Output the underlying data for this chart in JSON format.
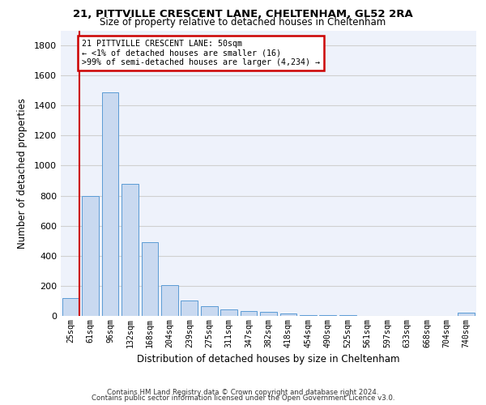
{
  "title1": "21, PITTVILLE CRESCENT LANE, CHELTENHAM, GL52 2RA",
  "title2": "Size of property relative to detached houses in Cheltenham",
  "xlabel": "Distribution of detached houses by size in Cheltenham",
  "ylabel": "Number of detached properties",
  "footer1": "Contains HM Land Registry data © Crown copyright and database right 2024.",
  "footer2": "Contains public sector information licensed under the Open Government Licence v3.0.",
  "bar_color": "#c9d9f0",
  "bar_edge_color": "#5b9bd5",
  "highlight_line_color": "#cc0000",
  "annotation_box_color": "#cc0000",
  "categories": [
    "25sqm",
    "61sqm",
    "96sqm",
    "132sqm",
    "168sqm",
    "204sqm",
    "239sqm",
    "275sqm",
    "311sqm",
    "347sqm",
    "382sqm",
    "418sqm",
    "454sqm",
    "490sqm",
    "525sqm",
    "561sqm",
    "597sqm",
    "633sqm",
    "668sqm",
    "704sqm",
    "740sqm"
  ],
  "values": [
    120,
    800,
    1490,
    880,
    490,
    205,
    105,
    65,
    42,
    35,
    28,
    15,
    8,
    5,
    3,
    2,
    2,
    1,
    1,
    1,
    20
  ],
  "annotation_text": "21 PITTVILLE CRESCENT LANE: 50sqm\n← <1% of detached houses are smaller (16)\n>99% of semi-detached houses are larger (4,234) →",
  "ylim": [
    0,
    1900
  ],
  "yticks": [
    0,
    200,
    400,
    600,
    800,
    1000,
    1200,
    1400,
    1600,
    1800
  ],
  "grid_color": "#d0d0d0",
  "background_color": "#eef2fb"
}
